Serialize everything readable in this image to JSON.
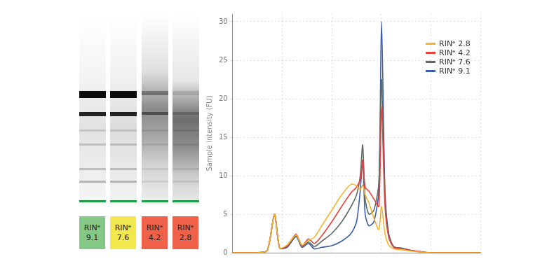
{
  "chart_data": {
    "type": "line",
    "y_label": "Sample intensity (FU)",
    "x": [
      0,
      10,
      14,
      16.9,
      19,
      22,
      25.6,
      28,
      30.6,
      33,
      36,
      40,
      44,
      47.8,
      50,
      51.5,
      52.5,
      53.5,
      55,
      57,
      59,
      60.1,
      61.5,
      63,
      65,
      68,
      72,
      80,
      90,
      100
    ],
    "series": [
      {
        "name": "RINᵉ 2.8",
        "color": "#f4b331",
        "values": [
          0,
          0,
          0.3,
          5,
          0.6,
          1,
          2.3,
          1,
          1.6,
          2,
          3.5,
          5.5,
          7.5,
          8.9,
          8.7,
          8.2,
          8.8,
          7.5,
          6.5,
          4.5,
          3,
          6,
          2.5,
          1,
          0.5,
          0.4,
          0.2,
          0,
          0,
          0
        ]
      },
      {
        "name": "RINᵉ 4.2",
        "color": "#e8433b",
        "values": [
          0,
          0,
          0.3,
          5,
          0.6,
          0.9,
          2.4,
          0.9,
          1.8,
          1.2,
          2.2,
          4,
          6,
          7.8,
          8.5,
          9.5,
          12,
          8.5,
          8,
          7,
          6,
          19,
          6,
          2,
          0.7,
          0.5,
          0.3,
          0,
          0,
          0
        ]
      },
      {
        "name": "RINᵉ 7.6",
        "color": "#5f6b5f",
        "values": [
          0,
          0,
          0.3,
          5,
          0.6,
          0.8,
          2.2,
          0.8,
          1.4,
          0.8,
          1.5,
          2.5,
          4,
          6,
          7.5,
          10,
          14,
          7,
          5,
          5.5,
          9,
          22.5,
          7,
          2.3,
          0.8,
          0.6,
          0.3,
          0,
          0,
          0
        ]
      },
      {
        "name": "RINᵉ 9.1",
        "color": "#3b5ea8",
        "values": [
          0,
          0,
          0.3,
          5,
          0.6,
          0.7,
          2.1,
          0.7,
          1.2,
          0.5,
          0.7,
          0.9,
          1.5,
          2.5,
          4,
          8,
          12,
          5,
          3.5,
          4,
          8,
          30,
          8,
          2.5,
          0.8,
          0.6,
          0.3,
          0,
          0,
          0
        ]
      }
    ],
    "xlim": [
      0,
      100
    ],
    "xticks": [
      0,
      20,
      40,
      60,
      80,
      100
    ],
    "ylim": [
      0,
      31
    ],
    "yticks": [
      0,
      5,
      10,
      15,
      20,
      25,
      30
    ],
    "grid": true,
    "legend": "upper right",
    "tick_labels": "y"
  },
  "gel": {
    "lanes": [
      {
        "label": "RINᵉ 9.1",
        "color": "#84c985"
      },
      {
        "label": "RINᵉ 7.6",
        "color": "#f2e84e"
      },
      {
        "label": "RINᵉ 4.2",
        "color": "#ef6249"
      },
      {
        "label": "RINᵉ 2.8",
        "color": "#ef6249"
      }
    ]
  }
}
